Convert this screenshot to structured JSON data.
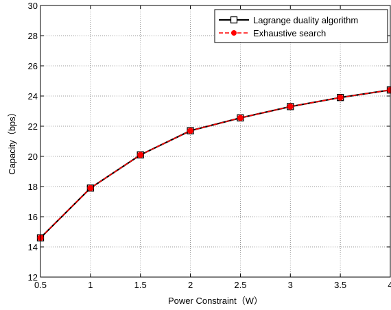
{
  "chart_data": {
    "type": "line",
    "title": "",
    "xlabel": "Power Constraint（W）",
    "ylabel": "Capacity（bps）",
    "xlim": [
      0.5,
      4
    ],
    "ylim": [
      12,
      30
    ],
    "x_ticks": [
      "0.5",
      "1",
      "1.5",
      "2",
      "2.5",
      "3",
      "3.5",
      "4"
    ],
    "y_ticks": [
      "12",
      "14",
      "16",
      "18",
      "20",
      "22",
      "24",
      "26",
      "28",
      "30"
    ],
    "grid": true,
    "legend_position": "top-right",
    "x": [
      0.5,
      1,
      1.5,
      2,
      2.5,
      3,
      3.5,
      4
    ],
    "series": [
      {
        "name": "Lagrange duality algorithm",
        "values": [
          14.6,
          17.9,
          20.1,
          21.7,
          22.55,
          23.3,
          23.9,
          24.4
        ],
        "color": "#000000",
        "line_style": "solid",
        "marker": "square"
      },
      {
        "name": "Exhaustive search",
        "values": [
          14.6,
          17.9,
          20.1,
          21.7,
          22.55,
          23.3,
          23.9,
          24.4
        ],
        "color": "#ff0000",
        "line_style": "dashed",
        "marker": "circle"
      }
    ]
  }
}
